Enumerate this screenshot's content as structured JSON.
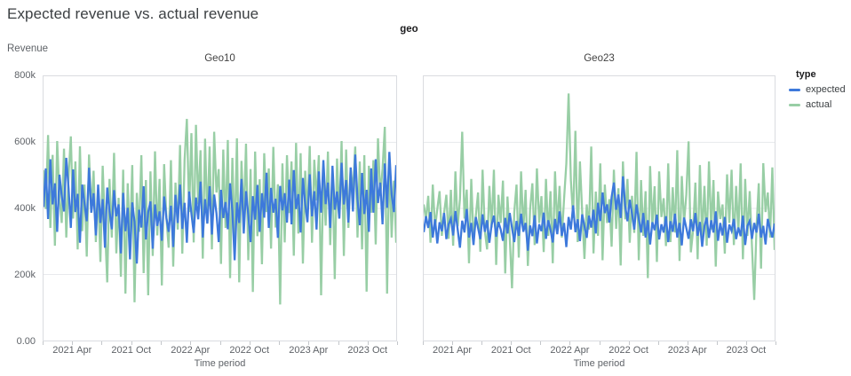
{
  "title": "Expected revenue vs. actual revenue",
  "facet_dimension_label": "geo",
  "y_axis_title": "Revenue",
  "x_axis_title": "Time period",
  "colors": {
    "expected": "#3d79db",
    "actual": "#98cea5",
    "gridline": "#e8eaed",
    "panel_border": "#dadce0",
    "axis_text": "#5f6368"
  },
  "legend": {
    "title": "type",
    "items": [
      {
        "label": "expected",
        "color": "#3d79db"
      },
      {
        "label": "actual",
        "color": "#98cea5"
      }
    ]
  },
  "chart_data": [
    {
      "type": "line",
      "facet": "Geo10",
      "x_unit": "week",
      "x_range": [
        "2021 Jan",
        "2023 Dec"
      ],
      "x_tick_labels": [
        "2021 Apr",
        "2021 Oct",
        "2022 Apr",
        "2022 Oct",
        "2023 Apr",
        "2023 Oct"
      ],
      "y_tick_labels": [
        "800k",
        "600k",
        "400k",
        "200k",
        "0.00"
      ],
      "ylim_k": [
        0,
        800
      ],
      "grid_values_k": [
        200,
        400,
        600
      ],
      "series": [
        {
          "name": "expected",
          "color": "#3d79db",
          "values_k": [
            404,
            521,
            368,
            549,
            412,
            476,
            329,
            502,
            437,
            391,
            553,
            462,
            341,
            518,
            389,
            444,
            296,
            472,
            415,
            361,
            523,
            387,
            446,
            318,
            472,
            356,
            428,
            281,
            463,
            392,
            337,
            455,
            376,
            412,
            264,
            447,
            331,
            402,
            246,
            418,
            359,
            233,
            396,
            342,
            467,
            306,
            389,
            421,
            278,
            412,
            347,
            391,
            302,
            436,
            371,
            329,
            408,
            283,
            441,
            356,
            472,
            338,
            417,
            296,
            451,
            384,
            326,
            433,
            367,
            481,
            312,
            428,
            354,
            467,
            321,
            442,
            386,
            298,
            456,
            371,
            419,
            337,
            476,
            392,
            243,
            418,
            356,
            489,
            324,
            452,
            381,
            298,
            437,
            366,
            471,
            329,
            446,
            372,
            508,
            341,
            462,
            387,
            429,
            311,
            468,
            394,
            446,
            357,
            487,
            352,
            516,
            398,
            443,
            327,
            492,
            414,
            358,
            503,
            376,
            452,
            336,
            512,
            387,
            546,
            413,
            478,
            341,
            529,
            396,
            451,
            369,
            538,
            412,
            486,
            357,
            524,
            391,
            563,
            428,
            349,
            507,
            383,
            456,
            329,
            521,
            387,
            549,
            416,
            478,
            352,
            536,
            402,
            571,
            443,
            389,
            531
          ]
        },
        {
          "name": "actual",
          "color": "#98cea5",
          "values_k": [
            516,
            398,
            622,
            341,
            562,
            287,
            604,
            438,
            356,
            581,
            312,
            497,
            618,
            369,
            542,
            276,
            588,
            331,
            472,
            254,
            563,
            387,
            514,
            298,
            456,
            238,
            529,
            347,
            176,
            489,
            312,
            568,
            264,
            432,
            193,
            517,
            142,
            476,
            288,
            531,
            116,
            447,
            329,
            561,
            204,
            486,
            137,
            512,
            256,
            573,
            318,
            489,
            167,
            534,
            372,
            281,
            546,
            224,
            478,
            336,
            592,
            263,
            547,
            671,
            389,
            628,
            297,
            653,
            412,
            576,
            248,
            611,
            354,
            587,
            276,
            632,
            448,
            519,
            232,
            578,
            341,
            607,
            189,
            553,
            287,
            612,
            176,
            544,
            368,
            596,
            243,
            519,
            147,
            572,
            316,
            488,
            231,
            567,
            389,
            521,
            278,
            586,
            342,
            473,
            109,
            536,
            297,
            561,
            386,
            542,
            257,
            598,
            324,
            567,
            233,
            514,
            378,
            589,
            296,
            547,
            424,
            561,
            137,
            506,
            348,
            572,
            289,
            527,
            186,
            551,
            372,
            604,
            256,
            578,
            341,
            522,
            448,
            587,
            312,
            542,
            276,
            561,
            148,
            529,
            387,
            546,
            291,
            612,
            438,
            519,
            647,
            142,
            563,
            312,
            484,
            296
          ]
        }
      ]
    },
    {
      "type": "line",
      "facet": "Geo23",
      "x_unit": "week",
      "x_range": [
        "2021 Jan",
        "2023 Dec"
      ],
      "x_tick_labels": [
        "2021 Apr",
        "2021 Oct",
        "2022 Apr",
        "2022 Oct",
        "2023 Apr",
        "2023 Oct"
      ],
      "y_tick_labels": [
        "800k",
        "600k",
        "400k",
        "200k",
        "0.00"
      ],
      "ylim_k": [
        0,
        800
      ],
      "grid_values_k": [
        200,
        400,
        600
      ],
      "series": [
        {
          "name": "expected",
          "color": "#3d79db",
          "values_k": [
            328,
            376,
            341,
            389,
            312,
            367,
            294,
            358,
            331,
            386,
            307,
            352,
            369,
            318,
            392,
            336,
            281,
            363,
            327,
            398,
            312,
            356,
            289,
            374,
            341,
            307,
            382,
            329,
            364,
            296,
            351,
            378,
            314,
            359,
            336,
            302,
            371,
            324,
            386,
            341,
            298,
            362,
            317,
            384,
            329,
            356,
            272,
            348,
            316,
            379,
            294,
            352,
            331,
            387,
            308,
            364,
            336,
            297,
            368,
            322,
            391,
            317,
            356,
            283,
            374,
            336,
            409,
            328,
            367,
            301,
            382,
            346,
            311,
            378,
            342,
            396,
            324,
            417,
            362,
            448,
            386,
            412,
            357,
            434,
            478,
            396,
            442,
            371,
            497,
            408,
            361,
            426,
            384,
            336,
            412,
            368,
            327,
            386,
            312,
            364,
            291,
            358,
            334,
            381,
            306,
            352,
            327,
            376,
            298,
            361,
            329,
            384,
            312,
            356,
            288,
            372,
            341,
            308,
            367,
            331,
            386,
            317,
            359,
            284,
            346,
            372,
            311,
            364,
            327,
            391,
            302,
            356,
            318,
            374,
            296,
            351,
            332,
            368,
            307,
            342,
            316,
            378,
            289,
            347,
            362,
            308,
            356,
            327,
            384,
            312,
            347,
            291,
            368,
            336,
            312,
            354
          ]
        },
        {
          "name": "actual",
          "color": "#98cea5",
          "values_k": [
            412,
            367,
            438,
            296,
            472,
            341,
            398,
            452,
            317,
            386,
            441,
            308,
            456,
            287,
            512,
            346,
            428,
            632,
            369,
            457,
            234,
            489,
            312,
            376,
            448,
            269,
            517,
            331,
            276,
            468,
            342,
            517,
            229,
            441,
            356,
            484,
            203,
            436,
            312,
            158,
            389,
            472,
            251,
            512,
            337,
            456,
            226,
            398,
            476,
            289,
            521,
            356,
            437,
            268,
            489,
            317,
            452,
            234,
            512,
            341,
            468,
            312,
            429,
            536,
            748,
            486,
            371,
            635,
            298,
            542,
            389,
            247,
            412,
            336,
            587,
            264,
            451,
            317,
            536,
            243,
            472,
            356,
            428,
            284,
            517,
            338,
            461,
            227,
            542,
            367,
            489,
            296,
            438,
            326,
            571,
            243,
            486,
            317,
            452,
            189,
            528,
            346,
            467,
            238,
            512,
            374,
            431,
            286,
            536,
            298,
            464,
            327,
            576,
            241,
            498,
            356,
            442,
            603,
            267,
            334,
            478,
            246,
            531,
            312,
            468,
            287,
            542,
            336,
            486,
            224,
            451,
            368,
            412,
            263,
            503,
            356,
            517,
            289,
            468,
            327,
            536,
            246,
            489,
            317,
            452,
            286,
            123,
            341,
            476,
            218,
            537,
            389,
            448,
            312,
            524,
            274
          ]
        }
      ]
    }
  ]
}
